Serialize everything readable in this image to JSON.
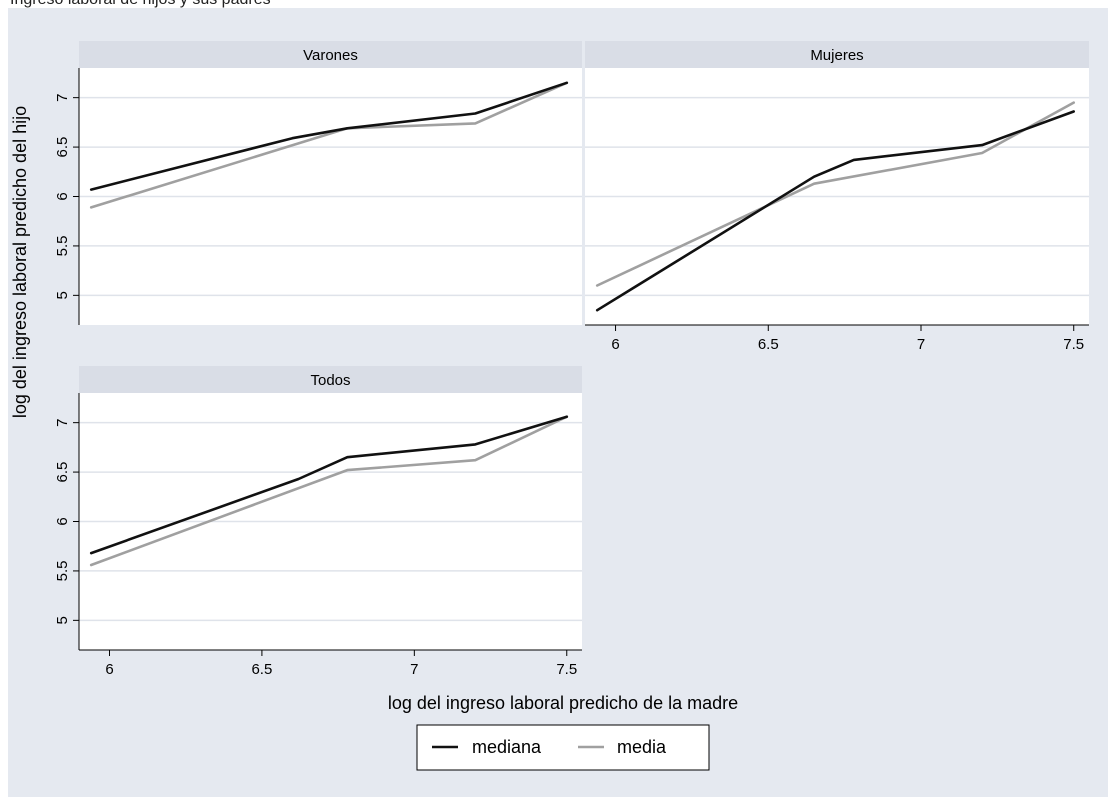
{
  "caption": "Ingreso laboral de hijos y sus padres",
  "colors": {
    "mediana": "#111111",
    "media": "#a0a0a0",
    "panel_bg": "#ffffff",
    "strip_bg": "#d9dde6",
    "outer_bg": "#e5e9f0",
    "grid": "#dfe3ea"
  },
  "chart_data": {
    "type": "line",
    "xlabel": "log del ingreso laboral predicho de la madre",
    "ylabel": "log del ingreso laboral predicho del hijo",
    "xlim": [
      5.9,
      7.55
    ],
    "ylim": [
      4.7,
      7.3
    ],
    "xticks": [
      "6",
      "6.5",
      "7",
      "7.5"
    ],
    "yticks": [
      "5",
      "5.5",
      "6",
      "6.5",
      "7"
    ],
    "legend": {
      "placement": "bottom",
      "entries": [
        "mediana",
        "media"
      ]
    },
    "panels": [
      {
        "title": "Varones",
        "series": [
          {
            "name": "mediana",
            "points": [
              [
                5.94,
                6.07
              ],
              [
                6.6,
                6.59
              ],
              [
                6.78,
                6.69
              ],
              [
                7.2,
                6.84
              ],
              [
                7.5,
                7.15
              ]
            ]
          },
          {
            "name": "media",
            "points": [
              [
                5.94,
                5.89
              ],
              [
                6.78,
                6.69
              ],
              [
                7.2,
                6.74
              ],
              [
                7.5,
                7.15
              ]
            ]
          }
        ]
      },
      {
        "title": "Mujeres",
        "series": [
          {
            "name": "mediana",
            "points": [
              [
                5.94,
                4.85
              ],
              [
                6.65,
                6.2
              ],
              [
                6.78,
                6.37
              ],
              [
                7.2,
                6.52
              ],
              [
                7.5,
                6.86
              ]
            ]
          },
          {
            "name": "media",
            "points": [
              [
                5.94,
                5.1
              ],
              [
                6.65,
                6.13
              ],
              [
                7.2,
                6.44
              ],
              [
                7.5,
                6.95
              ]
            ]
          }
        ]
      },
      {
        "title": "Todos",
        "series": [
          {
            "name": "mediana",
            "points": [
              [
                5.94,
                5.68
              ],
              [
                6.62,
                6.43
              ],
              [
                6.78,
                6.65
              ],
              [
                7.2,
                6.78
              ],
              [
                7.5,
                7.06
              ]
            ]
          },
          {
            "name": "media",
            "points": [
              [
                5.94,
                5.56
              ],
              [
                6.78,
                6.52
              ],
              [
                7.2,
                6.62
              ],
              [
                7.5,
                7.06
              ]
            ]
          }
        ]
      }
    ]
  }
}
